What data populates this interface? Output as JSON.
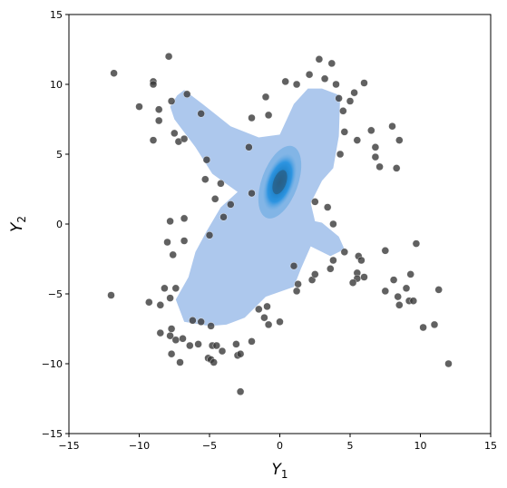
{
  "chart_data": {
    "type": "scatter",
    "title": "",
    "xlabel": "Y",
    "xlabel_subscript": "1",
    "ylabel": "Y",
    "ylabel_subscript": "2",
    "xlim": [
      -15,
      15
    ],
    "ylim": [
      -15,
      15
    ],
    "xticks": [
      -15,
      -10,
      -5,
      0,
      5,
      10,
      15
    ],
    "yticks": [
      -15,
      -10,
      -5,
      0,
      5,
      10,
      15
    ],
    "grid": false,
    "colors": {
      "points": "#3a3a3a",
      "density_outer": "#a9c5ec",
      "density_mid": "#5fa6e0",
      "density_core": "#1e8fe0",
      "density_peak": "#2a5f86"
    },
    "density_peak": [
      0,
      3
    ],
    "density_region": [
      [
        -7.3,
        9.2
      ],
      [
        -6.8,
        9.6
      ],
      [
        -5.5,
        8.6
      ],
      [
        -3.5,
        7.0
      ],
      [
        -1.5,
        6.2
      ],
      [
        0.0,
        6.4
      ],
      [
        1.0,
        8.6
      ],
      [
        2.0,
        9.7
      ],
      [
        3.0,
        9.7
      ],
      [
        4.3,
        9.2
      ],
      [
        4.2,
        6.3
      ],
      [
        3.8,
        4.0
      ],
      [
        3.0,
        3.1
      ],
      [
        2.2,
        1.5
      ],
      [
        2.5,
        0.2
      ],
      [
        3.0,
        0.1
      ],
      [
        4.2,
        -0.9
      ],
      [
        4.6,
        -1.8
      ],
      [
        3.6,
        -2.3
      ],
      [
        2.2,
        -1.6
      ],
      [
        1.5,
        -3.2
      ],
      [
        1.0,
        -4.5
      ],
      [
        -1.0,
        -5.2
      ],
      [
        -2.5,
        -6.7
      ],
      [
        -3.8,
        -7.2
      ],
      [
        -5.0,
        -7.3
      ],
      [
        -6.8,
        -7.0
      ],
      [
        -7.4,
        -5.4
      ],
      [
        -6.5,
        -3.8
      ],
      [
        -6.0,
        -2.0
      ],
      [
        -5.2,
        -0.5
      ],
      [
        -4.2,
        1.2
      ],
      [
        -3.0,
        2.3
      ],
      [
        -4.8,
        3.6
      ],
      [
        -6.0,
        5.5
      ],
      [
        -7.5,
        7.5
      ],
      [
        -7.8,
        8.4
      ]
    ],
    "points": [
      [
        -11.8,
        10.8
      ],
      [
        -9.0,
        10.2
      ],
      [
        -9.0,
        10.0
      ],
      [
        -7.9,
        12.0
      ],
      [
        -10.0,
        8.4
      ],
      [
        -8.6,
        8.2
      ],
      [
        -8.6,
        7.4
      ],
      [
        -9.0,
        6.0
      ],
      [
        -7.5,
        6.5
      ],
      [
        -7.2,
        5.9
      ],
      [
        -6.8,
        6.1
      ],
      [
        -7.7,
        8.8
      ],
      [
        -6.6,
        9.3
      ],
      [
        -5.6,
        7.9
      ],
      [
        -5.3,
        3.2
      ],
      [
        -4.6,
        1.8
      ],
      [
        -7.8,
        0.2
      ],
      [
        -6.8,
        0.4
      ],
      [
        -5.0,
        -0.8
      ],
      [
        -6.8,
        -1.2
      ],
      [
        -8.0,
        -1.3
      ],
      [
        -7.6,
        -2.2
      ],
      [
        -7.4,
        -4.6
      ],
      [
        -8.2,
        -4.6
      ],
      [
        -7.8,
        -5.3
      ],
      [
        -8.5,
        -5.8
      ],
      [
        -9.3,
        -5.6
      ],
      [
        -12.0,
        -5.1
      ],
      [
        -6.2,
        -6.9
      ],
      [
        -5.6,
        -7.0
      ],
      [
        -4.9,
        -7.3
      ],
      [
        -7.7,
        -7.5
      ],
      [
        -7.8,
        -8.0
      ],
      [
        -8.5,
        -7.8
      ],
      [
        -7.4,
        -8.3
      ],
      [
        -6.9,
        -8.2
      ],
      [
        -6.4,
        -8.7
      ],
      [
        -5.8,
        -8.6
      ],
      [
        -4.8,
        -8.7
      ],
      [
        -4.5,
        -8.7
      ],
      [
        -4.1,
        -9.1
      ],
      [
        -3.1,
        -8.6
      ],
      [
        -7.7,
        -9.3
      ],
      [
        -7.1,
        -9.9
      ],
      [
        -5.1,
        -9.6
      ],
      [
        -4.9,
        -9.7
      ],
      [
        -4.7,
        -9.9
      ],
      [
        -3.0,
        -9.4
      ],
      [
        -2.8,
        -9.3
      ],
      [
        -2.8,
        -12.0
      ],
      [
        -2.0,
        -8.4
      ],
      [
        -1.5,
        -6.1
      ],
      [
        -1.1,
        -6.7
      ],
      [
        -0.8,
        -7.2
      ],
      [
        -0.9,
        -5.9
      ],
      [
        0.0,
        -7.0
      ],
      [
        1.0,
        -3.0
      ],
      [
        1.3,
        -4.3
      ],
      [
        2.3,
        -4.0
      ],
      [
        2.5,
        -3.6
      ],
      [
        1.2,
        -4.8
      ],
      [
        3.6,
        -3.2
      ],
      [
        3.8,
        -2.6
      ],
      [
        4.6,
        -2.0
      ],
      [
        5.5,
        -3.5
      ],
      [
        5.5,
        -3.9
      ],
      [
        5.2,
        -4.2
      ],
      [
        6.0,
        -3.8
      ],
      [
        5.6,
        -2.3
      ],
      [
        5.8,
        -2.6
      ],
      [
        7.5,
        -1.9
      ],
      [
        9.7,
        -1.4
      ],
      [
        8.1,
        -4.0
      ],
      [
        9.3,
        -3.6
      ],
      [
        7.5,
        -4.8
      ],
      [
        8.4,
        -5.2
      ],
      [
        9.0,
        -4.6
      ],
      [
        9.2,
        -5.5
      ],
      [
        9.5,
        -5.5
      ],
      [
        8.5,
        -5.8
      ],
      [
        11.3,
        -4.7
      ],
      [
        11.0,
        -7.2
      ],
      [
        10.2,
        -7.4
      ],
      [
        12.0,
        -10.0
      ],
      [
        3.4,
        1.2
      ],
      [
        3.8,
        0.0
      ],
      [
        2.5,
        1.6
      ],
      [
        4.5,
        8.1
      ],
      [
        5.0,
        8.8
      ],
      [
        5.3,
        9.4
      ],
      [
        6.0,
        10.1
      ],
      [
        3.7,
        11.5
      ],
      [
        2.8,
        11.8
      ],
      [
        2.1,
        10.7
      ],
      [
        1.2,
        10.0
      ],
      [
        0.4,
        10.2
      ],
      [
        -1.0,
        9.1
      ],
      [
        -2.0,
        7.6
      ],
      [
        -0.8,
        7.8
      ],
      [
        4.3,
        5.0
      ],
      [
        4.6,
        6.6
      ],
      [
        5.5,
        6.0
      ],
      [
        6.8,
        5.5
      ],
      [
        6.5,
        6.7
      ],
      [
        6.8,
        4.8
      ],
      [
        7.1,
        4.1
      ],
      [
        8.0,
        7.0
      ],
      [
        8.5,
        6.0
      ],
      [
        8.3,
        4.0
      ],
      [
        4.0,
        10.0
      ],
      [
        4.2,
        9.0
      ],
      [
        3.2,
        10.4
      ],
      [
        -2.2,
        5.5
      ],
      [
        -2.0,
        2.2
      ],
      [
        -3.5,
        1.4
      ],
      [
        -4.0,
        0.5
      ],
      [
        -4.2,
        2.9
      ],
      [
        -5.2,
        4.6
      ]
    ]
  }
}
